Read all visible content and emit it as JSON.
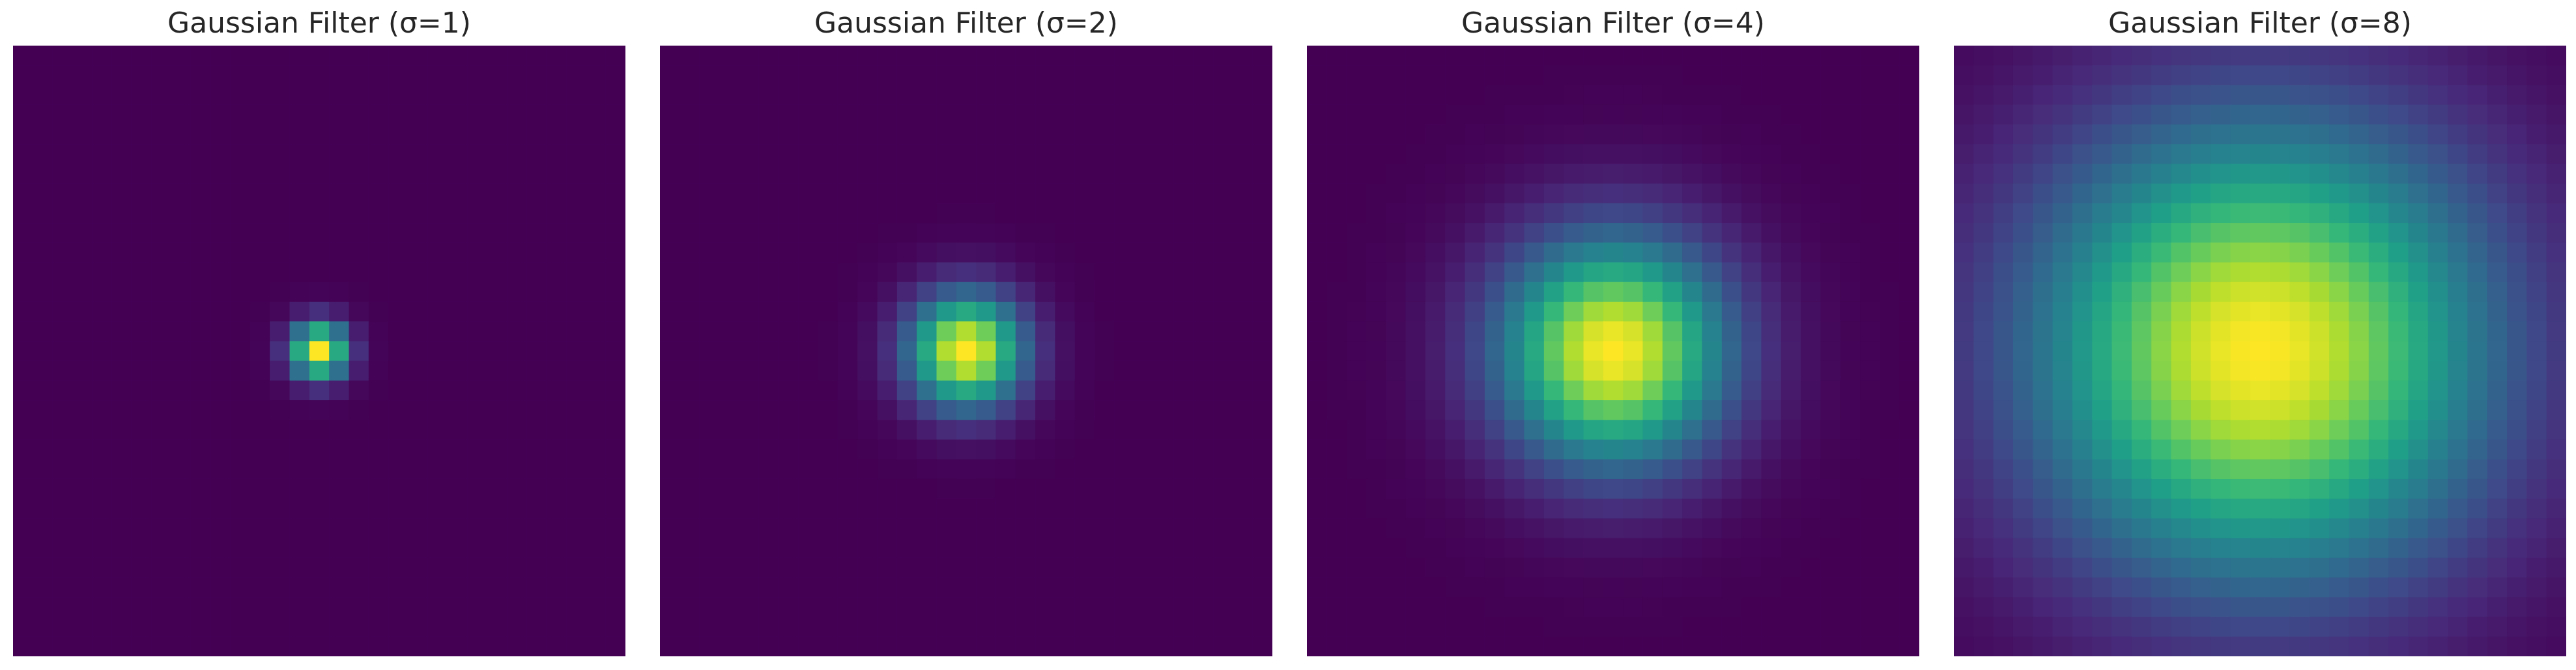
{
  "chart_data": [
    {
      "type": "heatmap",
      "title": "Gaussian Filter (σ=1)",
      "sigma": 1,
      "grid_size": 31,
      "colormap": "viridis",
      "value_range": [
        0,
        1
      ],
      "peak": [
        15,
        15
      ],
      "xlabel": "",
      "ylabel": "",
      "axes_visible": false,
      "grid": false
    },
    {
      "type": "heatmap",
      "title": "Gaussian Filter (σ=2)",
      "sigma": 2,
      "grid_size": 31,
      "colormap": "viridis",
      "value_range": [
        0,
        1
      ],
      "peak": [
        15,
        15
      ],
      "xlabel": "",
      "ylabel": "",
      "axes_visible": false,
      "grid": false
    },
    {
      "type": "heatmap",
      "title": "Gaussian Filter (σ=4)",
      "sigma": 4,
      "grid_size": 31,
      "colormap": "viridis",
      "value_range": [
        0,
        1
      ],
      "peak": [
        15,
        15
      ],
      "xlabel": "",
      "ylabel": "",
      "axes_visible": false,
      "grid": false
    },
    {
      "type": "heatmap",
      "title": "Gaussian Filter (σ=8)",
      "sigma": 8,
      "grid_size": 31,
      "colormap": "viridis",
      "value_range": [
        0,
        1
      ],
      "peak": [
        15,
        15
      ],
      "xlabel": "",
      "ylabel": "",
      "axes_visible": false,
      "grid": false
    }
  ]
}
